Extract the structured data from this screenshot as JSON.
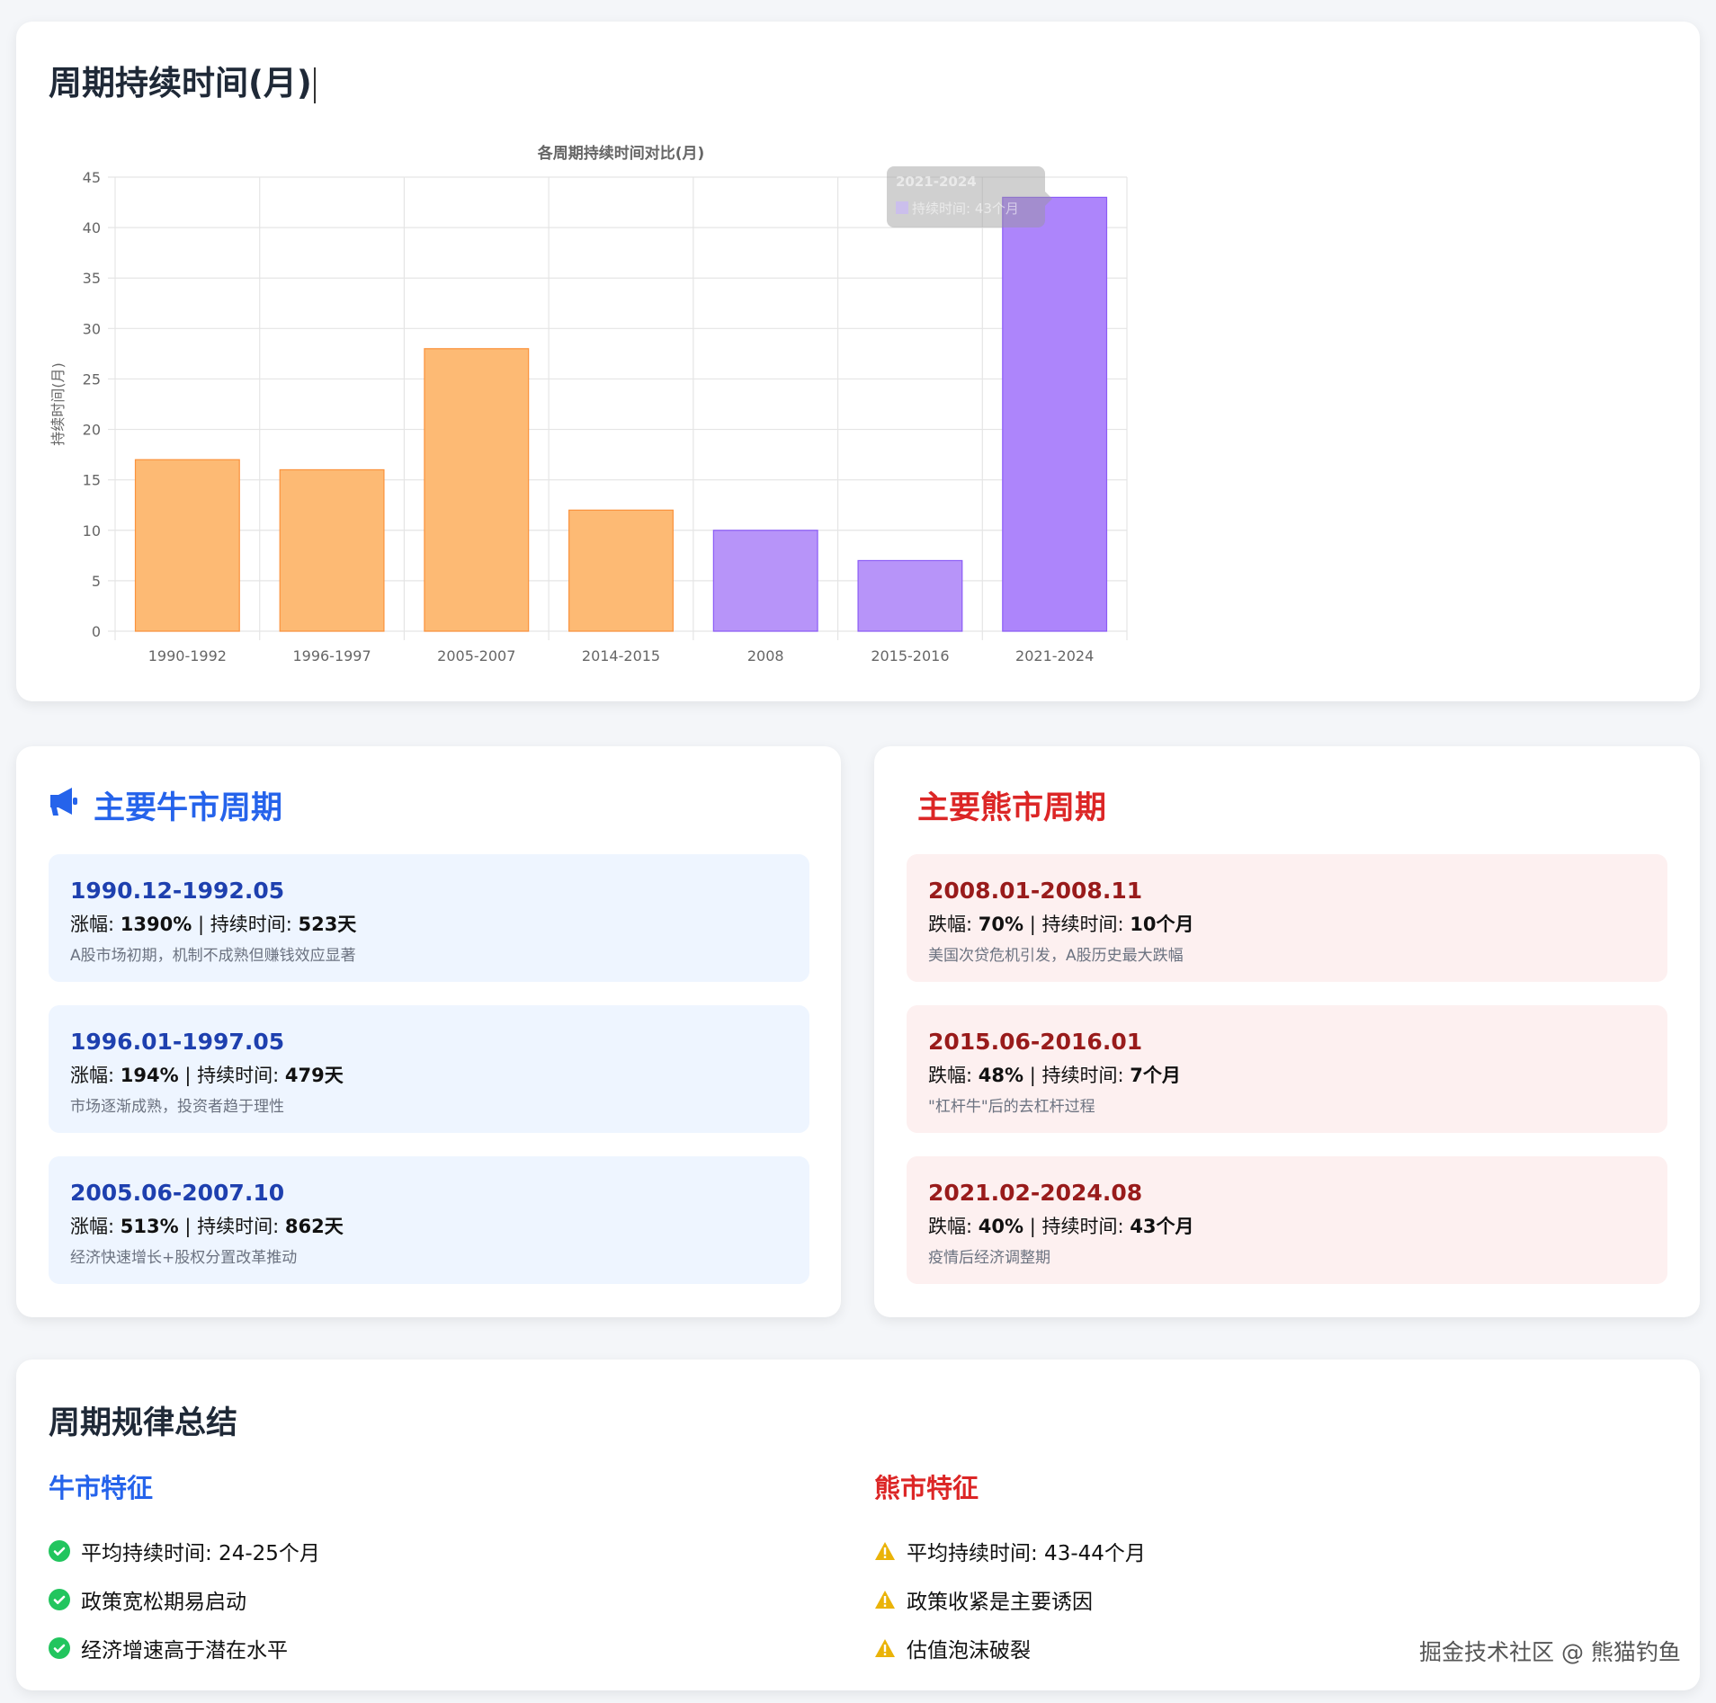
{
  "chart_section": {
    "title": "周期持续时间(月)"
  },
  "chart_data": {
    "type": "bar",
    "title": "各周期持续时间对比(月)",
    "ylabel": "持续时间(月)",
    "xlabel": "",
    "categories": [
      "1990-1992",
      "1996-1997",
      "2005-2007",
      "2014-2015",
      "2008",
      "2015-2016",
      "2021-2024"
    ],
    "values": [
      17,
      16,
      28,
      12,
      10,
      7,
      43
    ],
    "market_type": [
      "bull",
      "bull",
      "bull",
      "bull",
      "bear",
      "bear",
      "bear"
    ],
    "colors": {
      "bull": "#fdba74",
      "bull_border": "#fb923c",
      "bear": "#b794f9",
      "bear_border": "#8b5cf6",
      "hover": "#ad85fb"
    },
    "ylim": [
      0,
      45
    ],
    "yticks": [
      0,
      5,
      10,
      15,
      20,
      25,
      30,
      35,
      40,
      45
    ],
    "grid": true,
    "legend": "none",
    "tooltip": {
      "title": "2021-2024",
      "body": "持续时间: 43个月"
    }
  },
  "bull": {
    "title": "主要牛市周期",
    "icon": "megaphone-icon",
    "items": [
      {
        "date": "1990.12-1992.05",
        "change_label": "涨幅: ",
        "change": "1390%",
        "sep": " | ",
        "duration_label": "持续时间: ",
        "duration": "523天",
        "desc": "A股市场初期，机制不成熟但赚钱效应显著"
      },
      {
        "date": "1996.01-1997.05",
        "change_label": "涨幅: ",
        "change": "194%",
        "sep": " | ",
        "duration_label": "持续时间: ",
        "duration": "479天",
        "desc": "市场逐渐成熟，投资者趋于理性"
      },
      {
        "date": "2005.06-2007.10",
        "change_label": "涨幅: ",
        "change": "513%",
        "sep": " | ",
        "duration_label": "持续时间: ",
        "duration": "862天",
        "desc": "经济快速增长+股权分置改革推动"
      }
    ]
  },
  "bear": {
    "title": "主要熊市周期",
    "items": [
      {
        "date": "2008.01-2008.11",
        "change_label": "跌幅: ",
        "change": "70%",
        "sep": " | ",
        "duration_label": "持续时间: ",
        "duration": "10个月",
        "desc": "美国次贷危机引发，A股历史最大跌幅"
      },
      {
        "date": "2015.06-2016.01",
        "change_label": "跌幅: ",
        "change": "48%",
        "sep": " | ",
        "duration_label": "持续时间: ",
        "duration": "7个月",
        "desc": "\"杠杆牛\"后的去杠杆过程"
      },
      {
        "date": "2021.02-2024.08",
        "change_label": "跌幅: ",
        "change": "40%",
        "sep": " | ",
        "duration_label": "持续时间: ",
        "duration": "43个月",
        "desc": "疫情后经济调整期"
      }
    ]
  },
  "summary": {
    "title": "周期规律总结",
    "bull": {
      "title": "牛市特征",
      "color": "#2563eb",
      "icon": "check-circle-icon",
      "items": [
        "平均持续时间: 24-25个月",
        "政策宽松期易启动",
        "经济增速高于潜在水平"
      ]
    },
    "bear": {
      "title": "熊市特征",
      "color": "#dc2626",
      "icon": "warning-icon",
      "items": [
        "平均持续时间: 43-44个月",
        "政策收紧是主要诱因",
        "估值泡沫破裂"
      ]
    }
  },
  "watermark": "掘金技术社区 @ 熊猫钓鱼"
}
